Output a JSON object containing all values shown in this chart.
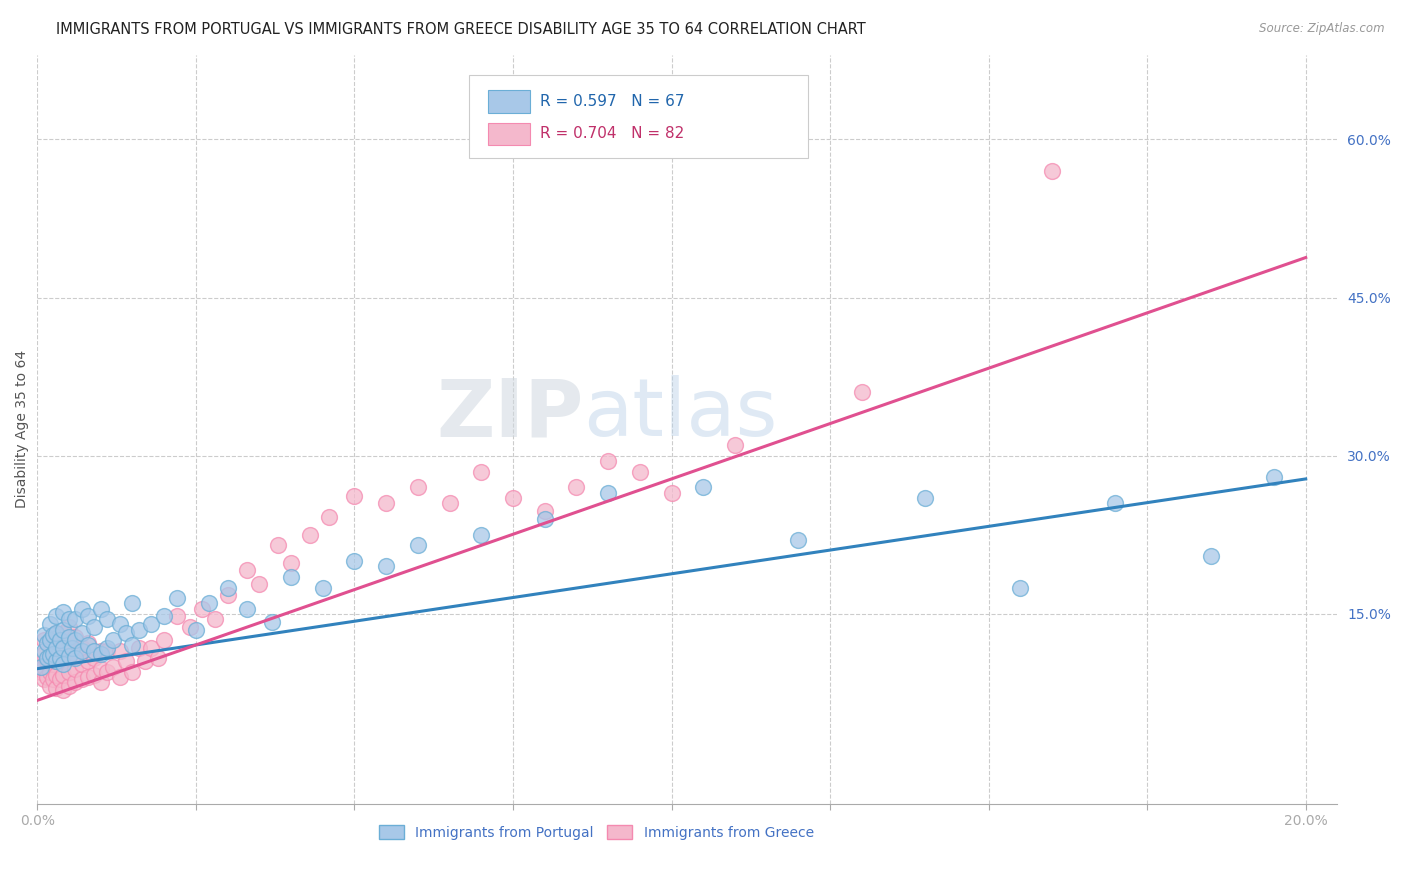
{
  "title": "IMMIGRANTS FROM PORTUGAL VS IMMIGRANTS FROM GREECE DISABILITY AGE 35 TO 64 CORRELATION CHART",
  "source": "Source: ZipAtlas.com",
  "ylabel": "Disability Age 35 to 64",
  "xlim": [
    0.0,
    0.205
  ],
  "ylim": [
    -0.03,
    0.68
  ],
  "xticks": [
    0.0,
    0.025,
    0.05,
    0.075,
    0.1,
    0.125,
    0.15,
    0.175,
    0.2
  ],
  "xticklabels": [
    "0.0%",
    "",
    "",
    "",
    "",
    "",
    "",
    "",
    "20.0%"
  ],
  "yticks_right": [
    0.15,
    0.3,
    0.45,
    0.6
  ],
  "yticklabels_right": [
    "15.0%",
    "30.0%",
    "45.0%",
    "60.0%"
  ],
  "legend_R_blue": "R = 0.597",
  "legend_N_blue": "N = 67",
  "legend_R_pink": "R = 0.704",
  "legend_N_pink": "N = 82",
  "legend_label_blue": "Immigrants from Portugal",
  "legend_label_pink": "Immigrants from Greece",
  "color_blue": "#a8c8e8",
  "color_blue_edge": "#6baed6",
  "color_blue_line": "#3182bd",
  "color_pink": "#f4b8cc",
  "color_pink_edge": "#f48ab0",
  "color_pink_line": "#e05090",
  "watermark_color": "#d0dce8",
  "blue_line_x": [
    0.0,
    0.2
  ],
  "blue_line_y": [
    0.098,
    0.278
  ],
  "pink_line_x": [
    0.0,
    0.2
  ],
  "pink_line_y": [
    0.068,
    0.488
  ],
  "blue_scatter_x": [
    0.0005,
    0.001,
    0.001,
    0.0015,
    0.0015,
    0.002,
    0.002,
    0.002,
    0.0025,
    0.0025,
    0.003,
    0.003,
    0.003,
    0.003,
    0.0035,
    0.0035,
    0.004,
    0.004,
    0.004,
    0.004,
    0.005,
    0.005,
    0.005,
    0.0055,
    0.006,
    0.006,
    0.006,
    0.007,
    0.007,
    0.007,
    0.008,
    0.008,
    0.009,
    0.009,
    0.01,
    0.01,
    0.011,
    0.011,
    0.012,
    0.013,
    0.014,
    0.015,
    0.015,
    0.016,
    0.018,
    0.02,
    0.022,
    0.025,
    0.027,
    0.03,
    0.033,
    0.037,
    0.04,
    0.045,
    0.05,
    0.055,
    0.06,
    0.07,
    0.08,
    0.09,
    0.105,
    0.12,
    0.14,
    0.155,
    0.17,
    0.185,
    0.195
  ],
  "blue_scatter_y": [
    0.1,
    0.115,
    0.13,
    0.108,
    0.122,
    0.11,
    0.125,
    0.14,
    0.112,
    0.13,
    0.105,
    0.118,
    0.132,
    0.148,
    0.108,
    0.125,
    0.102,
    0.118,
    0.135,
    0.152,
    0.11,
    0.128,
    0.145,
    0.118,
    0.108,
    0.125,
    0.145,
    0.115,
    0.132,
    0.155,
    0.12,
    0.148,
    0.115,
    0.138,
    0.112,
    0.155,
    0.118,
    0.145,
    0.125,
    0.14,
    0.132,
    0.12,
    0.16,
    0.135,
    0.14,
    0.148,
    0.165,
    0.135,
    0.16,
    0.175,
    0.155,
    0.142,
    0.185,
    0.175,
    0.2,
    0.195,
    0.215,
    0.225,
    0.24,
    0.265,
    0.27,
    0.22,
    0.26,
    0.175,
    0.255,
    0.205,
    0.28
  ],
  "pink_scatter_x": [
    0.0003,
    0.0005,
    0.001,
    0.001,
    0.001,
    0.001,
    0.0015,
    0.0015,
    0.002,
    0.002,
    0.002,
    0.002,
    0.0025,
    0.0025,
    0.003,
    0.003,
    0.003,
    0.003,
    0.003,
    0.0035,
    0.004,
    0.004,
    0.004,
    0.004,
    0.004,
    0.005,
    0.005,
    0.005,
    0.005,
    0.005,
    0.006,
    0.006,
    0.006,
    0.006,
    0.007,
    0.007,
    0.007,
    0.008,
    0.008,
    0.008,
    0.009,
    0.009,
    0.01,
    0.01,
    0.01,
    0.011,
    0.011,
    0.012,
    0.013,
    0.013,
    0.014,
    0.015,
    0.016,
    0.017,
    0.018,
    0.019,
    0.02,
    0.022,
    0.024,
    0.026,
    0.028,
    0.03,
    0.033,
    0.035,
    0.038,
    0.04,
    0.043,
    0.046,
    0.05,
    0.055,
    0.06,
    0.065,
    0.07,
    0.075,
    0.08,
    0.085,
    0.09,
    0.095,
    0.1,
    0.11,
    0.13,
    0.16
  ],
  "pink_scatter_y": [
    0.098,
    0.095,
    0.088,
    0.1,
    0.112,
    0.125,
    0.09,
    0.105,
    0.082,
    0.095,
    0.108,
    0.122,
    0.088,
    0.102,
    0.08,
    0.092,
    0.105,
    0.118,
    0.132,
    0.088,
    0.078,
    0.092,
    0.105,
    0.118,
    0.132,
    0.082,
    0.095,
    0.108,
    0.122,
    0.138,
    0.085,
    0.098,
    0.112,
    0.128,
    0.088,
    0.102,
    0.118,
    0.09,
    0.105,
    0.122,
    0.092,
    0.108,
    0.085,
    0.098,
    0.115,
    0.095,
    0.115,
    0.1,
    0.09,
    0.115,
    0.105,
    0.095,
    0.118,
    0.105,
    0.118,
    0.108,
    0.125,
    0.148,
    0.138,
    0.155,
    0.145,
    0.168,
    0.192,
    0.178,
    0.215,
    0.198,
    0.225,
    0.242,
    0.262,
    0.255,
    0.27,
    0.255,
    0.285,
    0.26,
    0.248,
    0.27,
    0.295,
    0.285,
    0.265,
    0.31,
    0.36,
    0.57
  ],
  "background_color": "#ffffff",
  "grid_color": "#cccccc",
  "title_fontsize": 10.5,
  "axis_fontsize": 10,
  "tick_fontsize": 10
}
